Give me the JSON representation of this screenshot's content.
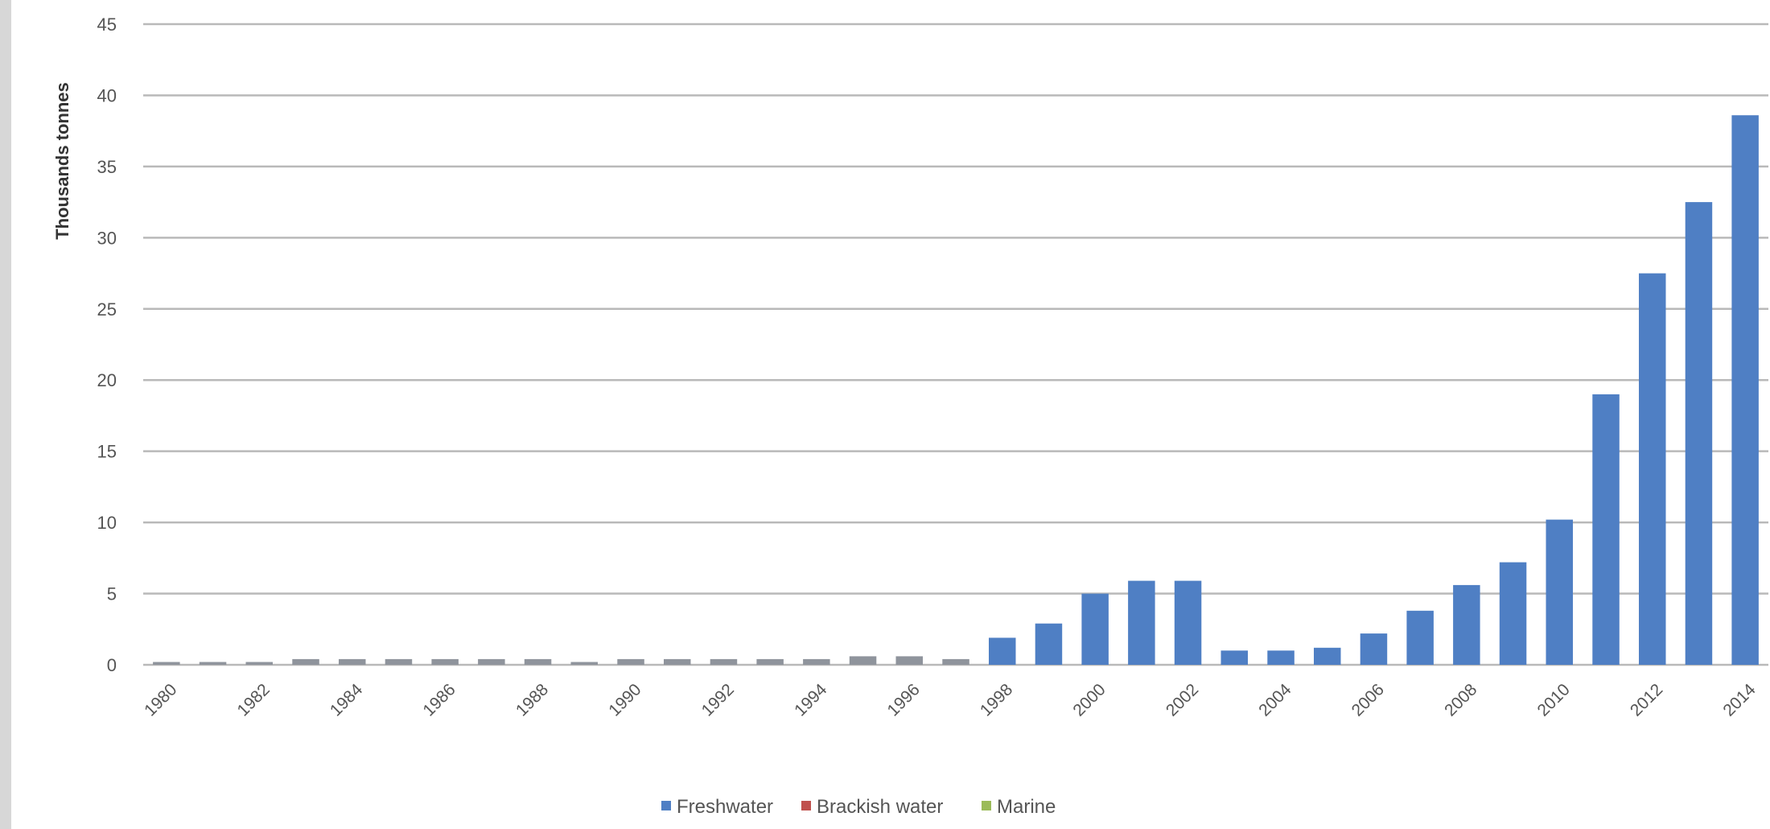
{
  "chart_data": {
    "type": "bar",
    "title": "",
    "xlabel": "",
    "ylabel": "Thousands tonnes",
    "ylim": [
      0,
      45
    ],
    "yticks": [
      0,
      5,
      10,
      15,
      20,
      25,
      30,
      35,
      40,
      45
    ],
    "grid": true,
    "legend": "bottom",
    "categories": [
      "1980",
      "1981",
      "1982",
      "1983",
      "1984",
      "1985",
      "1986",
      "1987",
      "1988",
      "1989",
      "1990",
      "1991",
      "1992",
      "1993",
      "1994",
      "1995",
      "1996",
      "1997",
      "1998",
      "1999",
      "2000",
      "2001",
      "2002",
      "2003",
      "2004",
      "2005",
      "2006",
      "2007",
      "2008",
      "2009",
      "2010",
      "2011",
      "2012",
      "2013",
      "2014"
    ],
    "xtick_labels": [
      "1980",
      "",
      "1982",
      "",
      "1984",
      "",
      "1986",
      "",
      "1988",
      "",
      "1990",
      "",
      "1992",
      "",
      "1994",
      "",
      "1996",
      "",
      "1998",
      "",
      "2000",
      "",
      "2002",
      "",
      "2004",
      "",
      "2006",
      "",
      "2008",
      "",
      "2010",
      "",
      "2012",
      "",
      "2014"
    ],
    "series": [
      {
        "name": "Freshwater",
        "color": "#4f7fc4",
        "values": [
          0.2,
          0.2,
          0.2,
          0.4,
          0.4,
          0.4,
          0.4,
          0.4,
          0.4,
          0.2,
          0.4,
          0.4,
          0.4,
          0.4,
          0.4,
          0.6,
          0.6,
          0.4,
          1.9,
          2.9,
          5.0,
          5.9,
          5.9,
          1.0,
          1.0,
          1.2,
          2.2,
          3.8,
          5.6,
          7.2,
          10.2,
          19.0,
          27.5,
          32.5,
          38.6
        ]
      },
      {
        "name": "Brackish water",
        "color": "#c0504d",
        "values": [
          0,
          0,
          0,
          0,
          0,
          0,
          0,
          0,
          0,
          0,
          0,
          0,
          0,
          0,
          0,
          0,
          0,
          0,
          0,
          0,
          0,
          0,
          0,
          0,
          0,
          0,
          0,
          0,
          0,
          0,
          0,
          0,
          0,
          0,
          0
        ]
      },
      {
        "name": "Marine",
        "color": "#9bbb59",
        "values": [
          0,
          0,
          0,
          0,
          0,
          0,
          0,
          0,
          0,
          0,
          0,
          0,
          0,
          0,
          0,
          0,
          0,
          0,
          0,
          0,
          0,
          0,
          0,
          0,
          0,
          0,
          0,
          0,
          0,
          0,
          0,
          0,
          0,
          0,
          0
        ]
      }
    ]
  }
}
